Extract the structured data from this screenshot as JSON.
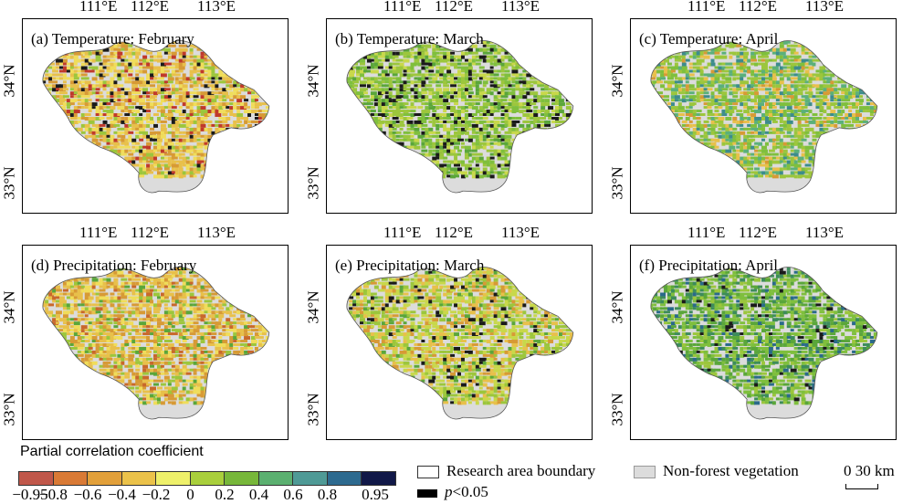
{
  "axes": {
    "lon_ticks": [
      "111°E",
      "112°E",
      "113°E"
    ],
    "lat_ticks": [
      "34°N",
      "33°N"
    ]
  },
  "panels": [
    {
      "title": "(a) Temperature: February",
      "palette": [
        "#e8c04a",
        "#f0dd5a",
        "#d79a35",
        "#9cc63c",
        "#c0392b",
        "#1a1a1a"
      ]
    },
    {
      "title": "(b) Temperature: March",
      "palette": [
        "#9cc63c",
        "#7fbf3d",
        "#c8d84a",
        "#5aa63a",
        "#1a1a1a",
        "#1a1a1a"
      ]
    },
    {
      "title": "(c) Temperature: April",
      "palette": [
        "#9cc63c",
        "#7fbf3d",
        "#5bb07a",
        "#e8c04a",
        "#3d8c8c",
        "#d79a35"
      ]
    },
    {
      "title": "(d) Precipitation: February",
      "palette": [
        "#e8c04a",
        "#d79a35",
        "#f0dd5a",
        "#9cc63c",
        "#c8682b",
        "#5aa63a"
      ]
    },
    {
      "title": "(e) Precipitation: March",
      "palette": [
        "#c8d84a",
        "#9cc63c",
        "#e8c04a",
        "#d79a35",
        "#1a1a1a",
        "#5aa63a"
      ]
    },
    {
      "title": "(f) Precipitation: April",
      "palette": [
        "#7fbf3d",
        "#5aa63a",
        "#9cc63c",
        "#3d8c5a",
        "#2a6a8a",
        "#1a1a1a"
      ]
    }
  ],
  "legend": {
    "title": "Partial correlation coefficient",
    "colors": [
      "#c0574a",
      "#d97a35",
      "#e2a03a",
      "#ebc24a",
      "#eef06a",
      "#a9cf3c",
      "#77b73a",
      "#5bb070",
      "#4f9a96",
      "#2d6a8f",
      "#111848"
    ],
    "ticks": [
      "−0.95",
      "−0.8",
      "−0.6",
      "−0.4",
      "−0.2",
      "0",
      "0.2",
      "0.4",
      "0.6",
      "0.8",
      "0.95"
    ],
    "boundary_label": "Research area boundary",
    "nonforest_label": "Non-forest vegetation",
    "nonforest_color": "#dcdcdc",
    "sig_label_italic": "p",
    "sig_label_rest": "<0.05",
    "scale_label": "0 30 km"
  }
}
